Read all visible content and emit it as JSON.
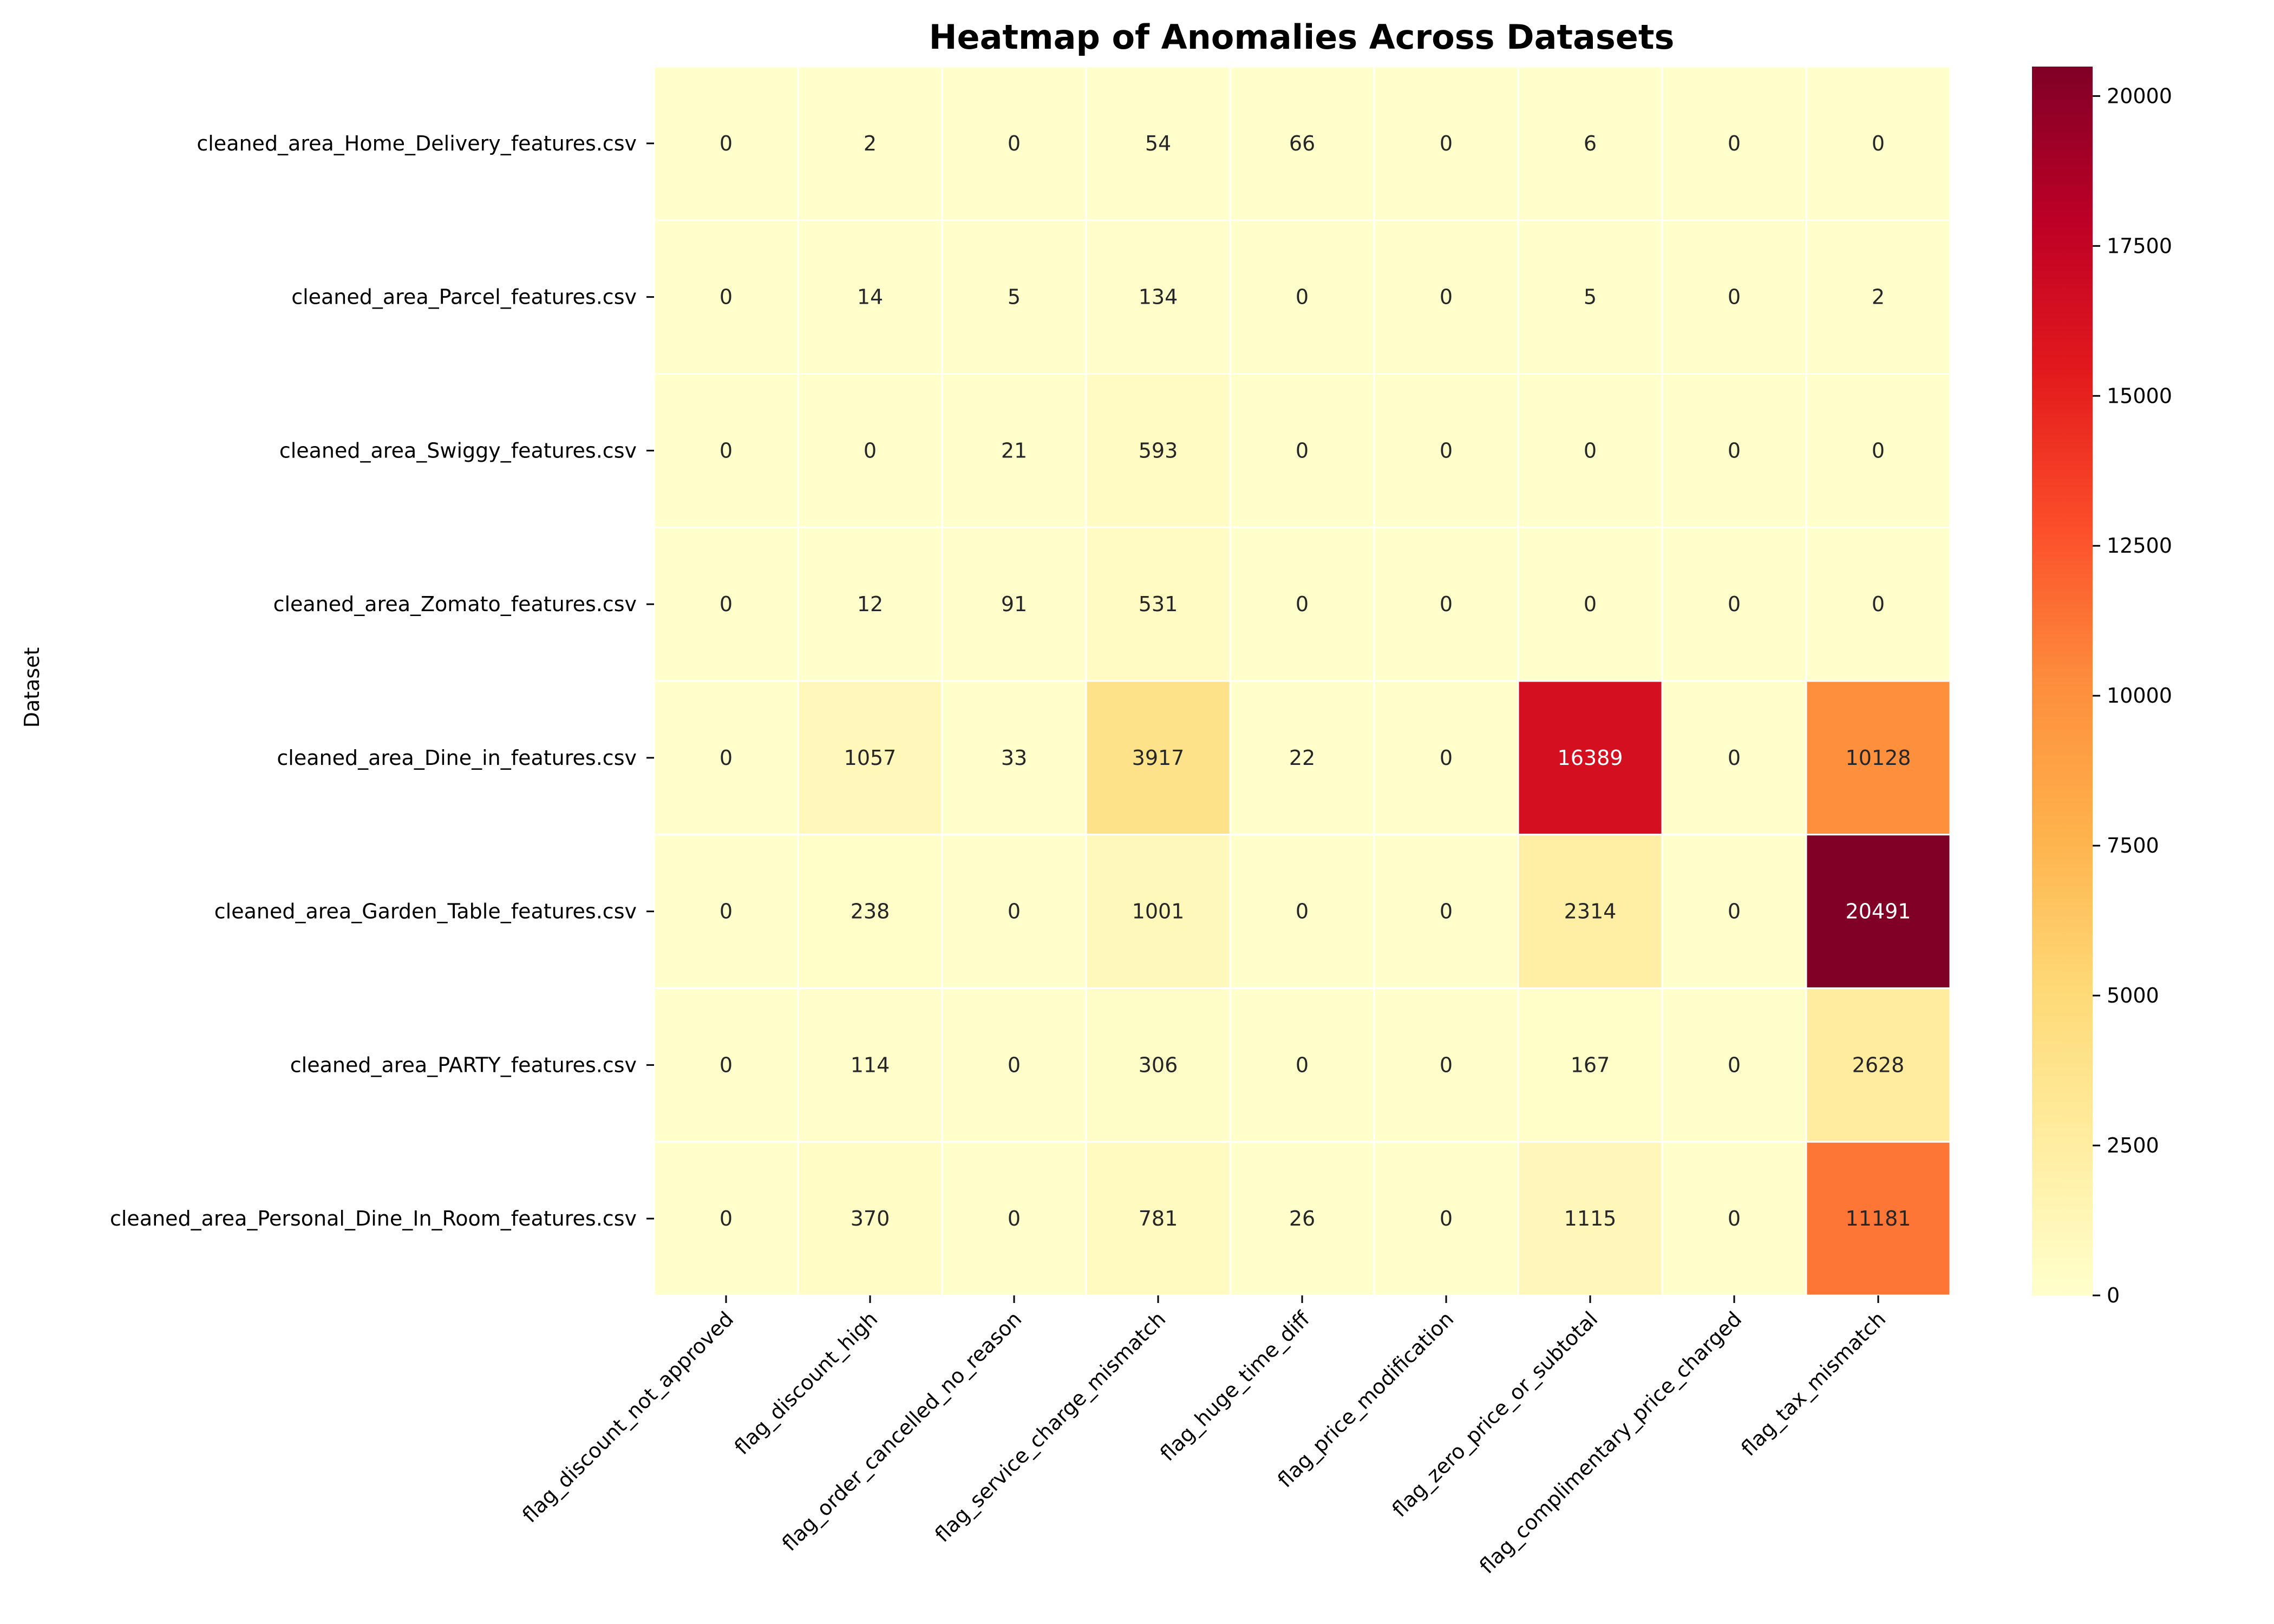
{
  "chart_data": {
    "type": "heatmap",
    "title": "Heatmap of Anomalies Across Datasets",
    "ylabel": "Dataset",
    "xlabel": "",
    "rows": [
      "cleaned_area_Home_Delivery_features.csv",
      "cleaned_area_Parcel_features.csv",
      "cleaned_area_Swiggy_features.csv",
      "cleaned_area_Zomato_features.csv",
      "cleaned_area_Dine_in_features.csv",
      "cleaned_area_Garden_Table_features.csv",
      "cleaned_area_PARTY_features.csv",
      "cleaned_area_Personal_Dine_In_Room_features.csv"
    ],
    "columns": [
      "flag_discount_not_approved",
      "flag_discount_high",
      "flag_order_cancelled_no_reason",
      "flag_service_charge_mismatch",
      "flag_huge_time_diff",
      "flag_price_modification",
      "flag_zero_price_or_subtotal",
      "flag_complimentary_price_charged",
      "flag_tax_mismatch"
    ],
    "values": [
      [
        0,
        2,
        0,
        54,
        66,
        0,
        6,
        0,
        0
      ],
      [
        0,
        14,
        5,
        134,
        0,
        0,
        5,
        0,
        2
      ],
      [
        0,
        0,
        21,
        593,
        0,
        0,
        0,
        0,
        0
      ],
      [
        0,
        12,
        91,
        531,
        0,
        0,
        0,
        0,
        0
      ],
      [
        0,
        1057,
        33,
        3917,
        22,
        0,
        16389,
        0,
        10128
      ],
      [
        0,
        238,
        0,
        1001,
        0,
        0,
        2314,
        0,
        20491
      ],
      [
        0,
        114,
        0,
        306,
        0,
        0,
        167,
        0,
        2628
      ],
      [
        0,
        370,
        0,
        781,
        26,
        0,
        1115,
        0,
        11181
      ]
    ],
    "colormap": "YlOrRd",
    "colorbar": {
      "range": [
        0,
        20491
      ],
      "ticks": [
        0,
        2500,
        5000,
        7500,
        10000,
        12500,
        15000,
        17500,
        20000
      ]
    }
  }
}
